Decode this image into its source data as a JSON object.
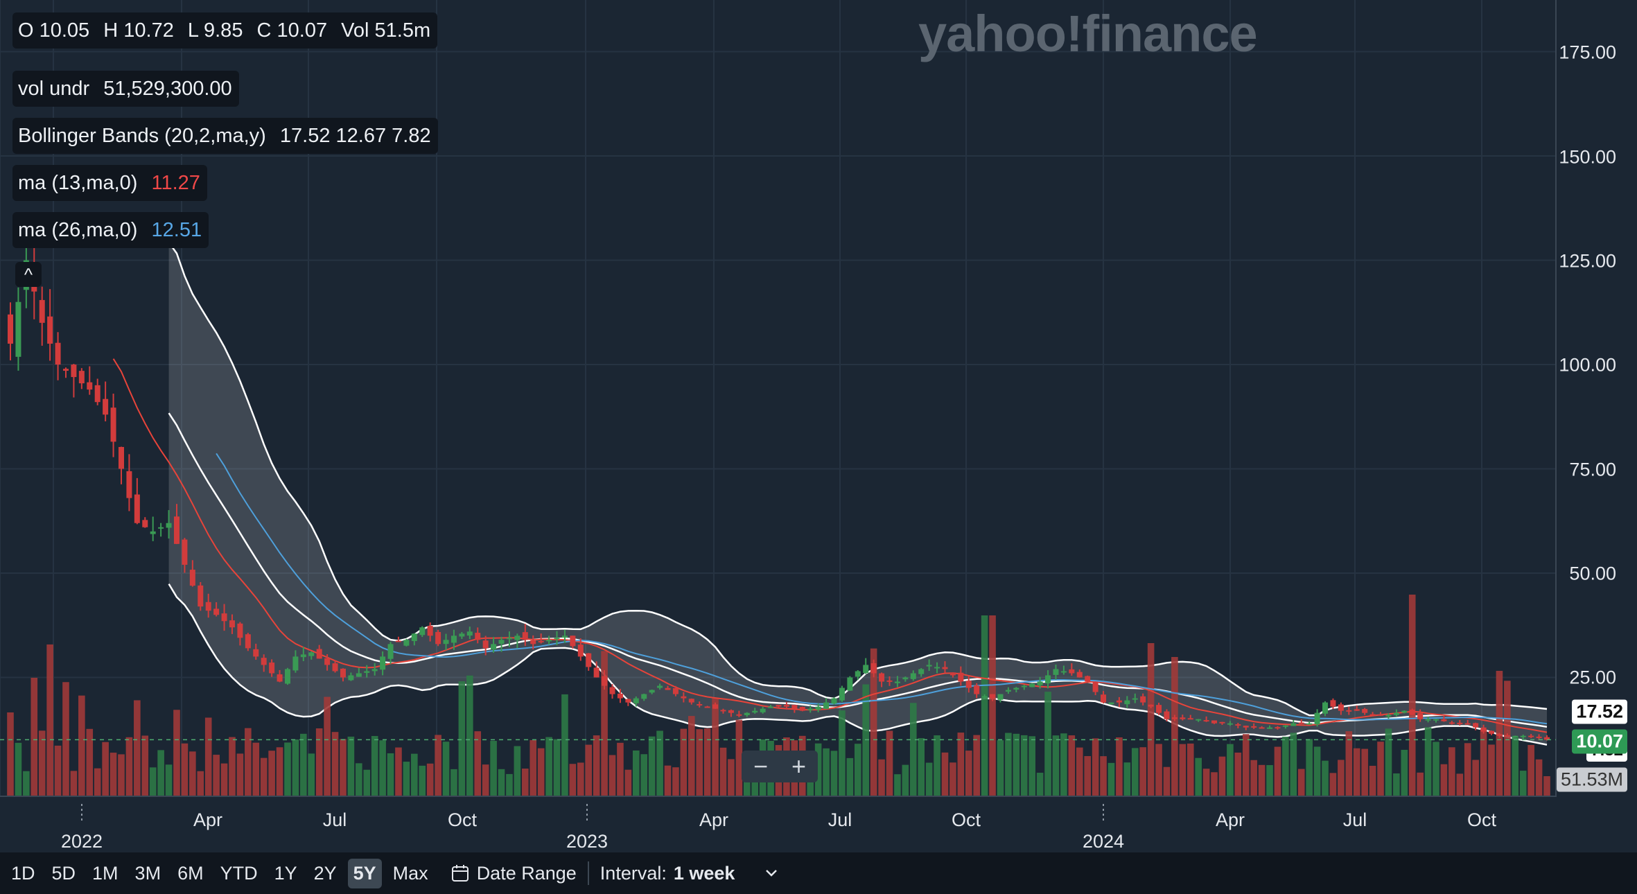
{
  "logo": "yahoo!finance",
  "legend": {
    "ohlc": [
      "O 10.05",
      "H 10.72",
      "L 9.85",
      "C 10.07",
      "Vol 51.5m"
    ],
    "vol_label": "vol undr",
    "vol_value": "51,529,300.00",
    "bb_label": "Bollinger Bands (20,2,ma,y)",
    "bb_values": "17.52 12.67 7.82",
    "ma13_label": "ma (13,ma,0)",
    "ma13_value": "11.27",
    "ma26_label": "ma (26,ma,0)",
    "ma26_value": "12.51",
    "collapse_icon": "^"
  },
  "tags": {
    "upper": "17.52",
    "close": "10.07",
    "lower": "7.82",
    "volume": "51.53M"
  },
  "zoom": {
    "minus": "−",
    "plus": "+"
  },
  "toolbar": {
    "ranges": [
      "1D",
      "5D",
      "1M",
      "3M",
      "6M",
      "YTD",
      "1Y",
      "2Y",
      "5Y",
      "Max"
    ],
    "active_range": "5Y",
    "date_range": "Date Range",
    "interval_label": "Interval:",
    "interval_value": "1 week"
  },
  "colors": {
    "up": "#3a9a54",
    "down": "#d23c3c",
    "vol_up": "#2e7a46",
    "vol_down": "#a13a38",
    "ma13": "#e8443a",
    "ma26": "#4ea0db",
    "band": "#ffffff",
    "background": "#1b2633"
  },
  "chart_data": {
    "type": "candlestick",
    "interval": "1 week",
    "ylim": [
      0,
      185
    ],
    "yticks": [
      "25.00",
      "50.00",
      "75.00",
      "100.00",
      "125.00",
      "150.00",
      "175.00"
    ],
    "xticks": [
      "Apr",
      "Jul",
      "Oct",
      "Apr",
      "Jul",
      "Oct",
      "Apr",
      "Jul",
      "Oct"
    ],
    "years": [
      "2022",
      "2023",
      "2024"
    ],
    "last": {
      "open": 10.05,
      "high": 10.72,
      "low": 9.85,
      "close": 10.07,
      "volume": "51.5m"
    },
    "price_anchors": [
      [
        0,
        105
      ],
      [
        2,
        125
      ],
      [
        4,
        110
      ],
      [
        6,
        100
      ],
      [
        8,
        97
      ],
      [
        10,
        94
      ],
      [
        12,
        88
      ],
      [
        14,
        75
      ],
      [
        15,
        68
      ],
      [
        16,
        62
      ],
      [
        18,
        60
      ],
      [
        20,
        62
      ],
      [
        22,
        52
      ],
      [
        24,
        42
      ],
      [
        26,
        40
      ],
      [
        28,
        37
      ],
      [
        30,
        32
      ],
      [
        32,
        28
      ],
      [
        34,
        24
      ],
      [
        36,
        30
      ],
      [
        38,
        31
      ],
      [
        40,
        28
      ],
      [
        42,
        25
      ],
      [
        44,
        26
      ],
      [
        46,
        27
      ],
      [
        48,
        33
      ],
      [
        50,
        34
      ],
      [
        52,
        37
      ],
      [
        54,
        33
      ],
      [
        56,
        35
      ],
      [
        58,
        36
      ],
      [
        60,
        32
      ],
      [
        62,
        34
      ],
      [
        64,
        35
      ],
      [
        66,
        33
      ],
      [
        68,
        34
      ],
      [
        70,
        35
      ],
      [
        72,
        30
      ],
      [
        74,
        25
      ],
      [
        76,
        21
      ],
      [
        78,
        19
      ],
      [
        80,
        21
      ],
      [
        82,
        23
      ],
      [
        84,
        21
      ],
      [
        86,
        19
      ],
      [
        88,
        18
      ],
      [
        90,
        17
      ],
      [
        92,
        16
      ],
      [
        94,
        17
      ],
      [
        96,
        18
      ],
      [
        98,
        18
      ],
      [
        100,
        17
      ],
      [
        102,
        18
      ],
      [
        104,
        20
      ],
      [
        106,
        25
      ],
      [
        108,
        28
      ],
      [
        110,
        24
      ],
      [
        112,
        24
      ],
      [
        114,
        26
      ],
      [
        116,
        28
      ],
      [
        118,
        27
      ],
      [
        120,
        24
      ],
      [
        122,
        21
      ],
      [
        124,
        20
      ],
      [
        126,
        22
      ],
      [
        128,
        23
      ],
      [
        130,
        24
      ],
      [
        132,
        27
      ],
      [
        134,
        26
      ],
      [
        136,
        24
      ],
      [
        138,
        19
      ],
      [
        140,
        19
      ],
      [
        142,
        20
      ],
      [
        144,
        18
      ],
      [
        146,
        15
      ],
      [
        148,
        15
      ],
      [
        150,
        15
      ],
      [
        152,
        14
      ],
      [
        154,
        14
      ],
      [
        156,
        13
      ],
      [
        158,
        13
      ],
      [
        160,
        13
      ],
      [
        162,
        14
      ],
      [
        164,
        14
      ],
      [
        166,
        19
      ],
      [
        168,
        17
      ],
      [
        170,
        17
      ],
      [
        172,
        16
      ],
      [
        174,
        16
      ],
      [
        176,
        17
      ],
      [
        178,
        15
      ],
      [
        180,
        15
      ],
      [
        182,
        14
      ],
      [
        184,
        14
      ],
      [
        186,
        12
      ],
      [
        188,
        11
      ],
      [
        190,
        11
      ],
      [
        192,
        11
      ],
      [
        194,
        10.07
      ]
    ],
    "n_weeks": 195,
    "bands_start_week": 20,
    "ma13_start_week": 13,
    "ma26_start_week": 26
  }
}
